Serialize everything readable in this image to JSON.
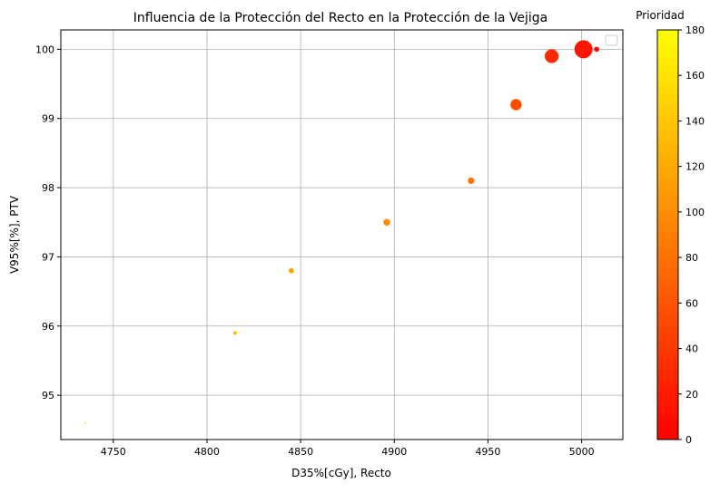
{
  "chart_data": {
    "type": "scatter",
    "title": "Influencia de la Protección del Recto en la  Protección de la Vejiga",
    "xlabel": "D35%[cGy], Recto",
    "ylabel": "V95%[%], PTV",
    "xlim": [
      4722,
      5022
    ],
    "ylim": [
      94.36,
      100.28
    ],
    "xticks": [
      4750,
      4800,
      4850,
      4900,
      4950,
      5000
    ],
    "yticks": [
      95,
      96,
      97,
      98,
      99,
      100
    ],
    "grid": true,
    "legend": "top-right",
    "colormap": {
      "low": "#ff0000",
      "high": "#ffff00"
    },
    "colorbar": {
      "label": "Prioridad",
      "range": [
        0,
        180
      ],
      "ticks": [
        0,
        20,
        40,
        60,
        80,
        100,
        120,
        140,
        160,
        180
      ]
    },
    "points": [
      {
        "x": 4735,
        "y": 94.6,
        "priority": 160,
        "size": 1
      },
      {
        "x": 4815,
        "y": 95.9,
        "priority": 130,
        "size": 2.2
      },
      {
        "x": 4845,
        "y": 96.8,
        "priority": 115,
        "size": 3
      },
      {
        "x": 4896,
        "y": 97.5,
        "priority": 100,
        "size": 4
      },
      {
        "x": 4941,
        "y": 98.1,
        "priority": 80,
        "size": 3.8
      },
      {
        "x": 4965,
        "y": 99.2,
        "priority": 55,
        "size": 6.5
      },
      {
        "x": 4984,
        "y": 99.9,
        "priority": 30,
        "size": 8
      },
      {
        "x": 5001,
        "y": 100.0,
        "priority": 15,
        "size": 10.5
      },
      {
        "x": 5008,
        "y": 100.0,
        "priority": 5,
        "size": 3
      }
    ]
  }
}
